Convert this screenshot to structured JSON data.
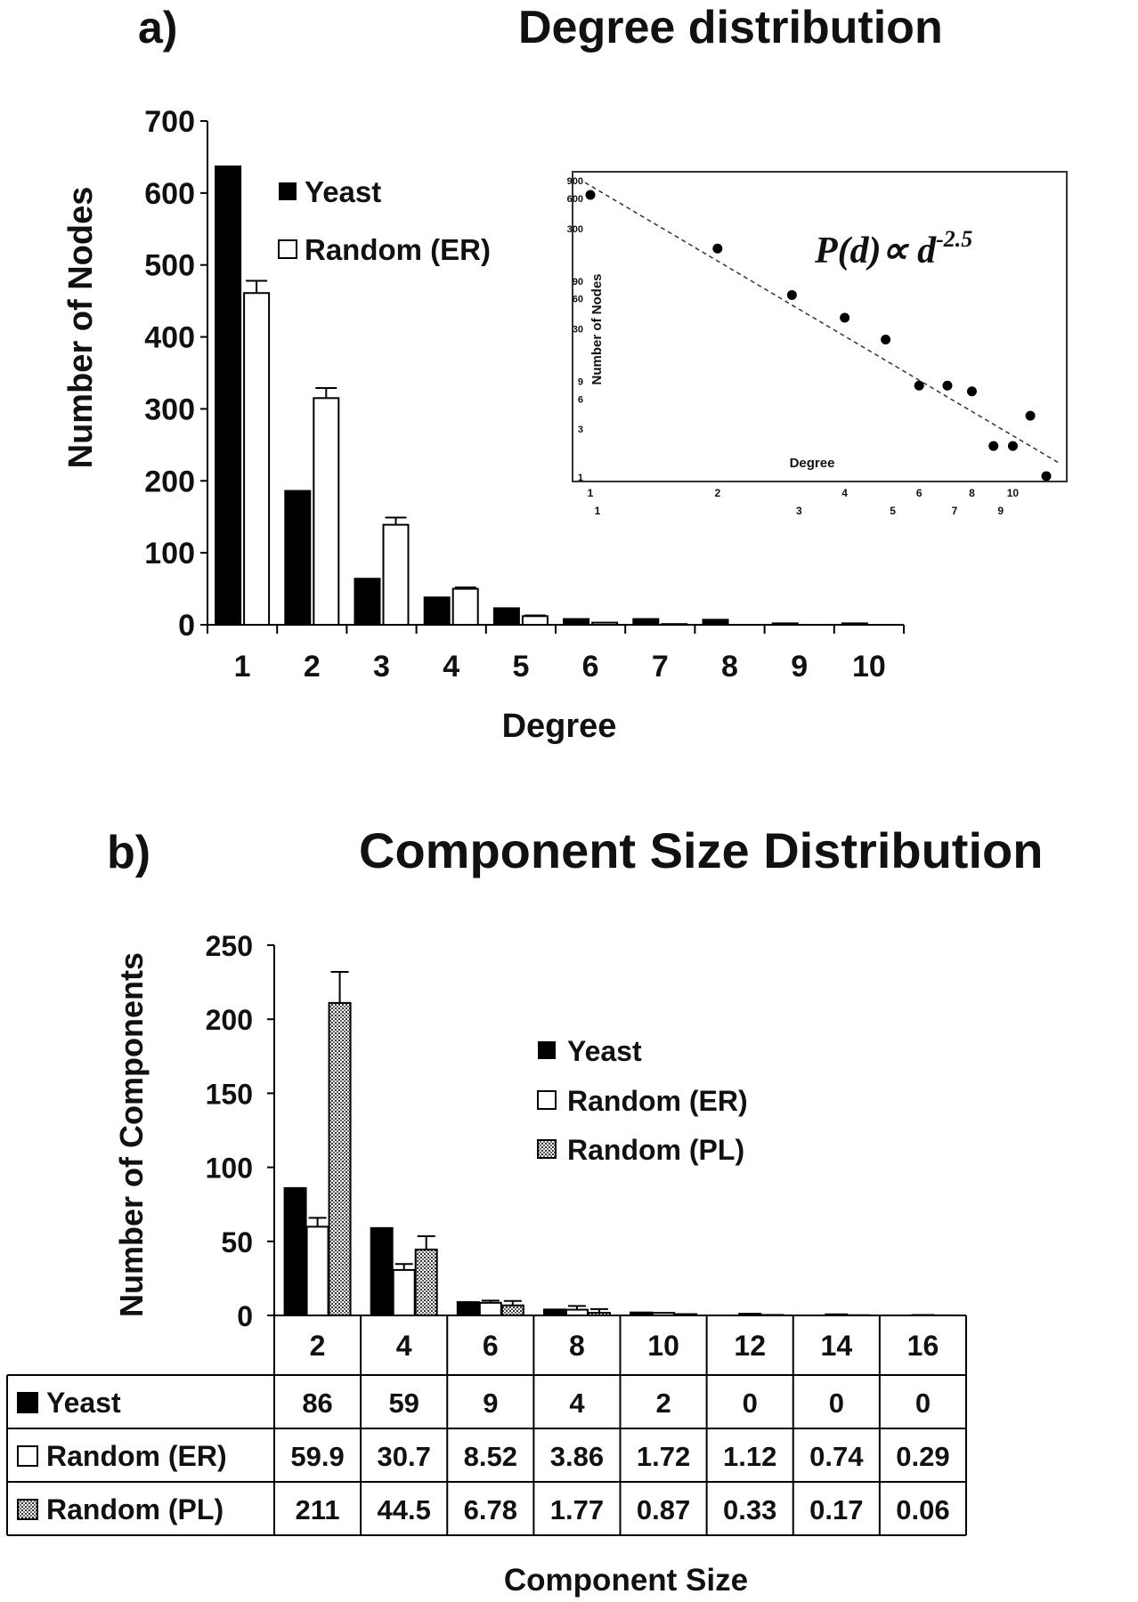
{
  "chart_data": [
    {
      "type": "bar",
      "panel_label": "a)",
      "title": "Degree distribution",
      "xlabel": "Degree",
      "ylabel": "Number of Nodes",
      "categories": [
        "1",
        "2",
        "3",
        "4",
        "5",
        "6",
        "7",
        "8",
        "9",
        "10"
      ],
      "ylim": [
        0,
        700
      ],
      "yticks": [
        "0",
        "100",
        "200",
        "300",
        "400",
        "500",
        "600",
        "700"
      ],
      "series": [
        {
          "name": "Yeast",
          "style": "black",
          "values": [
            637,
            186,
            64,
            38,
            23,
            8,
            8,
            7,
            2,
            2
          ]
        },
        {
          "name": "Random (ER)",
          "style": "white",
          "values": [
            461,
            315,
            139,
            50,
            12,
            3,
            1,
            0,
            0,
            0
          ],
          "errors": [
            17,
            14,
            10,
            2,
            1,
            0,
            0,
            0,
            0,
            0
          ]
        }
      ],
      "inset": {
        "type": "scatter",
        "scale": "log-log",
        "xlabel": "Degree",
        "ylabel": "Number of Nodes",
        "annotation": "P(d)∝ d",
        "annotation_exp": "-2.5",
        "xticks_top": [
          "1",
          "2",
          "4",
          "6",
          "8",
          "10"
        ],
        "xticks_bottom": [
          "1",
          "3",
          "5",
          "7",
          "9"
        ],
        "yticks": [
          "900",
          "600",
          "300",
          "90",
          "60",
          "30",
          "9",
          "6",
          "3",
          "1"
        ],
        "points": [
          {
            "x": 1,
            "y": 637
          },
          {
            "x": 2,
            "y": 186
          },
          {
            "x": 3,
            "y": 64
          },
          {
            "x": 4,
            "y": 38
          },
          {
            "x": 5,
            "y": 23
          },
          {
            "x": 6,
            "y": 8
          },
          {
            "x": 7,
            "y": 8
          },
          {
            "x": 8,
            "y": 7
          },
          {
            "x": 9,
            "y": 2
          },
          {
            "x": 10,
            "y": 2
          },
          {
            "x": 11,
            "y": 4
          },
          {
            "x": 12,
            "y": 1
          }
        ],
        "fit": {
          "x": [
            1,
            13
          ],
          "y": [
            900,
            1.4
          ]
        }
      }
    },
    {
      "type": "bar",
      "panel_label": "b)",
      "title": "Component Size Distribution",
      "xlabel": "Component Size",
      "ylabel": "Number of Components",
      "categories": [
        "2",
        "4",
        "6",
        "8",
        "10",
        "12",
        "14",
        "16"
      ],
      "ylim": [
        0,
        250
      ],
      "yticks": [
        "0",
        "50",
        "100",
        "150",
        "200",
        "250"
      ],
      "series": [
        {
          "name": "Yeast",
          "style": "black",
          "values": [
            86,
            59,
            9,
            4,
            2,
            0,
            0,
            0
          ],
          "labels": [
            "86",
            "59",
            "9",
            "4",
            "2",
            "0",
            "0",
            "0"
          ],
          "errors": [
            0,
            0,
            0,
            0,
            0,
            0,
            0,
            0
          ]
        },
        {
          "name": "Random (ER)",
          "style": "white",
          "values": [
            59.9,
            30.7,
            8.52,
            3.86,
            1.72,
            1.12,
            0.74,
            0.29
          ],
          "labels": [
            "59.9",
            "30.7",
            "8.52",
            "3.86",
            "1.72",
            "1.12",
            "0.74",
            "0.29"
          ],
          "errors": [
            6,
            4,
            1.5,
            2.5,
            0,
            0,
            0,
            0
          ]
        },
        {
          "name": "Random (PL)",
          "style": "dotted",
          "values": [
            211,
            44.5,
            6.78,
            1.77,
            0.87,
            0.33,
            0.17,
            0.06
          ],
          "labels": [
            "211",
            "44.5",
            "6.78",
            "1.77",
            "0.87",
            "0.33",
            "0.17",
            "0.06"
          ],
          "errors": [
            21,
            9,
            3,
            2.5,
            0,
            0,
            0,
            0
          ]
        }
      ]
    }
  ]
}
